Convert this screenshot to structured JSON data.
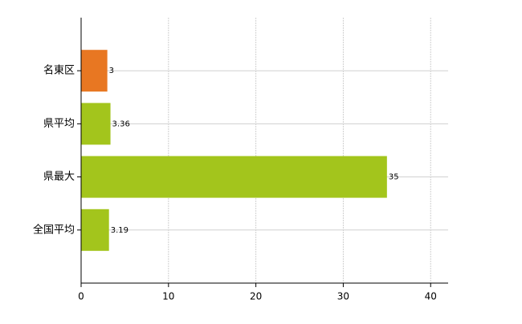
{
  "chart_data": {
    "type": "barh",
    "categories": [
      "名東区",
      "県平均",
      "県最大",
      "全国平均"
    ],
    "values": [
      3,
      3.36,
      35,
      3.19
    ],
    "colors": [
      "#e87722",
      "#a3c51c",
      "#a3c51c",
      "#a3c51c"
    ],
    "xlim": [
      0,
      42
    ],
    "xticks": [
      0,
      10,
      20,
      30,
      40
    ],
    "grid": true
  }
}
